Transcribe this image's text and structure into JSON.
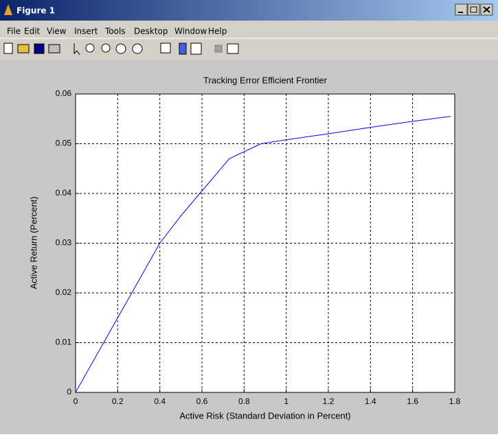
{
  "window": {
    "title": "Figure 1",
    "menu": [
      "File",
      "Edit",
      "View",
      "Insert",
      "Tools",
      "Desktop",
      "Window",
      "Help"
    ]
  },
  "chart_data": {
    "type": "line",
    "title": "Tracking Error Efficient Frontier",
    "x_label": "Active Risk (Standard Deviation in Percent)",
    "y_label": "Active Return (Percent)",
    "x": [
      0,
      0.1,
      0.2,
      0.3,
      0.4,
      0.5,
      0.6,
      0.73,
      0.88,
      1.0,
      1.2,
      1.4,
      1.6,
      1.78
    ],
    "series": [
      {
        "color": "#0000ff",
        "values": [
          0,
          0.0075,
          0.015,
          0.0225,
          0.03,
          0.0355,
          0.0405,
          0.047,
          0.05,
          0.0508,
          0.052,
          0.0533,
          0.0545,
          0.0555
        ]
      }
    ],
    "xlim": [
      0,
      1.8
    ],
    "xticks": [
      0,
      0.2,
      0.4,
      0.6,
      0.8,
      1,
      1.2,
      1.4,
      1.6,
      1.8
    ],
    "ylim": [
      0,
      0.06
    ],
    "yticks": [
      0,
      0.01,
      0.02,
      0.03,
      0.04,
      0.05,
      0.06
    ],
    "grid": true
  }
}
